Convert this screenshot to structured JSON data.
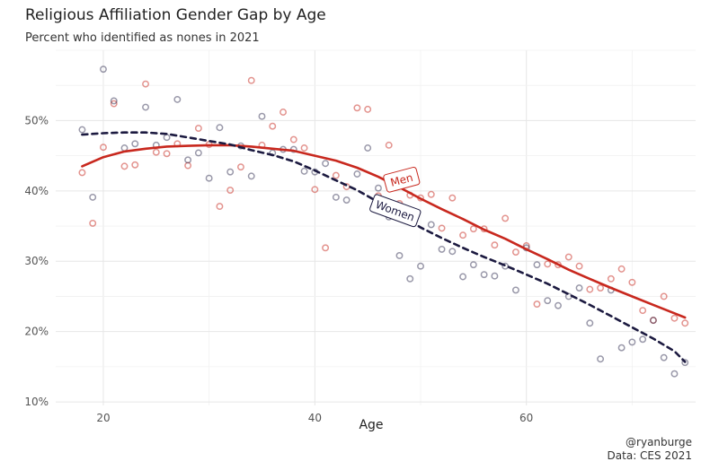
{
  "chart_data": {
    "type": "scatter",
    "title": "Religious Affiliation Gender Gap by Age",
    "subtitle": "Percent who identified as nones in 2021",
    "xlabel": "Age",
    "ylabel": "",
    "xlim": [
      15.5,
      76
    ],
    "ylim": [
      9.5,
      60
    ],
    "xticks": [
      20,
      40,
      60
    ],
    "yticks": [
      10,
      20,
      30,
      40,
      50
    ],
    "yticklabels": [
      "10%",
      "20%",
      "30%",
      "40%",
      "50%"
    ],
    "grid": true,
    "legend": "none",
    "caption": [
      "@ryanburge",
      "Data: CES 2021"
    ],
    "series": [
      {
        "name": "Men",
        "color": "#c8281e",
        "points": [
          [
            18,
            42.6
          ],
          [
            19,
            35.4
          ],
          [
            20,
            46.2
          ],
          [
            21,
            52.4
          ],
          [
            22,
            43.5
          ],
          [
            23,
            43.7
          ],
          [
            24,
            55.2
          ],
          [
            25,
            45.5
          ],
          [
            26,
            45.3
          ],
          [
            27,
            46.7
          ],
          [
            28,
            43.6
          ],
          [
            29,
            48.9
          ],
          [
            30,
            46.6
          ],
          [
            31,
            37.8
          ],
          [
            32,
            40.1
          ],
          [
            33,
            43.4
          ],
          [
            34,
            55.7
          ],
          [
            35,
            46.5
          ],
          [
            36,
            49.2
          ],
          [
            37,
            51.2
          ],
          [
            38,
            47.3
          ],
          [
            39,
            46.1
          ],
          [
            40,
            40.2
          ],
          [
            41,
            31.9
          ],
          [
            42,
            42.2
          ],
          [
            43,
            40.6
          ],
          [
            44,
            51.8
          ],
          [
            45,
            51.6
          ],
          [
            46,
            39.3
          ],
          [
            47,
            46.5
          ],
          [
            48,
            38.2
          ],
          [
            49,
            39.4
          ],
          [
            50,
            39.0
          ],
          [
            51,
            39.5
          ],
          [
            52,
            34.7
          ],
          [
            53,
            39.0
          ],
          [
            54,
            33.7
          ],
          [
            55,
            34.6
          ],
          [
            56,
            34.6
          ],
          [
            57,
            32.3
          ],
          [
            58,
            36.1
          ],
          [
            59,
            31.3
          ],
          [
            60,
            32.2
          ],
          [
            61,
            23.9
          ],
          [
            62,
            29.6
          ],
          [
            63,
            29.5
          ],
          [
            64,
            30.6
          ],
          [
            65,
            29.3
          ],
          [
            66,
            26.0
          ],
          [
            67,
            26.2
          ],
          [
            68,
            27.5
          ],
          [
            69,
            28.9
          ],
          [
            70,
            27.0
          ],
          [
            71,
            23.0
          ],
          [
            72,
            21.6
          ],
          [
            73,
            25.0
          ],
          [
            74,
            21.9
          ],
          [
            75,
            21.2
          ]
        ]
      },
      {
        "name": "Women",
        "color": "#1c1a40",
        "points": [
          [
            18,
            48.7
          ],
          [
            19,
            39.1
          ],
          [
            20,
            57.3
          ],
          [
            21,
            52.8
          ],
          [
            22,
            46.1
          ],
          [
            23,
            46.7
          ],
          [
            24,
            51.9
          ],
          [
            25,
            46.5
          ],
          [
            26,
            47.6
          ],
          [
            27,
            53.0
          ],
          [
            28,
            44.4
          ],
          [
            29,
            45.4
          ],
          [
            30,
            41.8
          ],
          [
            31,
            49.0
          ],
          [
            32,
            42.7
          ],
          [
            33,
            46.4
          ],
          [
            34,
            42.1
          ],
          [
            35,
            50.6
          ],
          [
            36,
            45.4
          ],
          [
            37,
            45.9
          ],
          [
            38,
            45.9
          ],
          [
            39,
            42.8
          ],
          [
            40,
            42.7
          ],
          [
            41,
            43.9
          ],
          [
            42,
            39.1
          ],
          [
            43,
            38.7
          ],
          [
            44,
            42.4
          ],
          [
            45,
            46.1
          ],
          [
            46,
            40.4
          ],
          [
            47,
            36.3
          ],
          [
            48,
            30.8
          ],
          [
            49,
            27.5
          ],
          [
            50,
            29.3
          ],
          [
            51,
            35.2
          ],
          [
            52,
            31.7
          ],
          [
            53,
            31.4
          ],
          [
            54,
            27.8
          ],
          [
            55,
            29.5
          ],
          [
            56,
            28.1
          ],
          [
            57,
            27.9
          ],
          [
            58,
            29.3
          ],
          [
            59,
            25.9
          ],
          [
            60,
            31.9
          ],
          [
            61,
            29.5
          ],
          [
            62,
            24.4
          ],
          [
            63,
            23.7
          ],
          [
            64,
            25.0
          ],
          [
            65,
            26.2
          ],
          [
            66,
            21.2
          ],
          [
            67,
            16.1
          ],
          [
            68,
            25.9
          ],
          [
            69,
            17.7
          ],
          [
            70,
            18.5
          ],
          [
            71,
            18.9
          ],
          [
            72,
            21.6
          ],
          [
            73,
            16.3
          ],
          [
            74,
            14.0
          ],
          [
            75,
            15.6
          ]
        ]
      }
    ],
    "trend_lines": [
      {
        "name": "Men",
        "style": "solid",
        "color": "#c8281e",
        "points": [
          [
            18,
            43.5
          ],
          [
            20,
            44.8
          ],
          [
            22,
            45.6
          ],
          [
            24,
            46.0
          ],
          [
            26,
            46.3
          ],
          [
            28,
            46.4
          ],
          [
            30,
            46.5
          ],
          [
            32,
            46.5
          ],
          [
            34,
            46.3
          ],
          [
            36,
            46.0
          ],
          [
            38,
            45.7
          ],
          [
            40,
            45.0
          ],
          [
            42,
            44.3
          ],
          [
            44,
            43.3
          ],
          [
            46,
            42.0
          ],
          [
            48,
            40.5
          ],
          [
            50,
            38.9
          ],
          [
            52,
            37.4
          ],
          [
            54,
            36.0
          ],
          [
            56,
            34.5
          ],
          [
            58,
            33.2
          ],
          [
            60,
            31.7
          ],
          [
            62,
            30.3
          ],
          [
            64,
            28.8
          ],
          [
            66,
            27.5
          ],
          [
            68,
            26.2
          ],
          [
            70,
            25.0
          ],
          [
            72,
            23.8
          ],
          [
            74,
            22.6
          ],
          [
            75,
            22.0
          ]
        ]
      },
      {
        "name": "Women",
        "style": "dashed",
        "color": "#1c1a40",
        "points": [
          [
            18,
            48.0
          ],
          [
            20,
            48.2
          ],
          [
            22,
            48.3
          ],
          [
            24,
            48.3
          ],
          [
            26,
            48.1
          ],
          [
            28,
            47.6
          ],
          [
            30,
            47.1
          ],
          [
            32,
            46.6
          ],
          [
            34,
            45.8
          ],
          [
            36,
            45.1
          ],
          [
            38,
            44.2
          ],
          [
            40,
            42.9
          ],
          [
            42,
            41.5
          ],
          [
            44,
            40.1
          ],
          [
            46,
            38.4
          ],
          [
            48,
            36.7
          ],
          [
            50,
            34.8
          ],
          [
            52,
            33.3
          ],
          [
            54,
            31.9
          ],
          [
            56,
            30.6
          ],
          [
            58,
            29.4
          ],
          [
            60,
            28.1
          ],
          [
            62,
            26.8
          ],
          [
            64,
            25.3
          ],
          [
            66,
            23.8
          ],
          [
            68,
            22.2
          ],
          [
            70,
            20.6
          ],
          [
            72,
            19.0
          ],
          [
            74,
            17.2
          ],
          [
            75,
            15.7
          ]
        ]
      }
    ],
    "annotations": [
      {
        "label": "Men",
        "x": 48.2,
        "y": 41.6,
        "angle": -15
      },
      {
        "label": "Women",
        "x": 47.6,
        "y": 37.2,
        "angle": 20
      }
    ]
  }
}
